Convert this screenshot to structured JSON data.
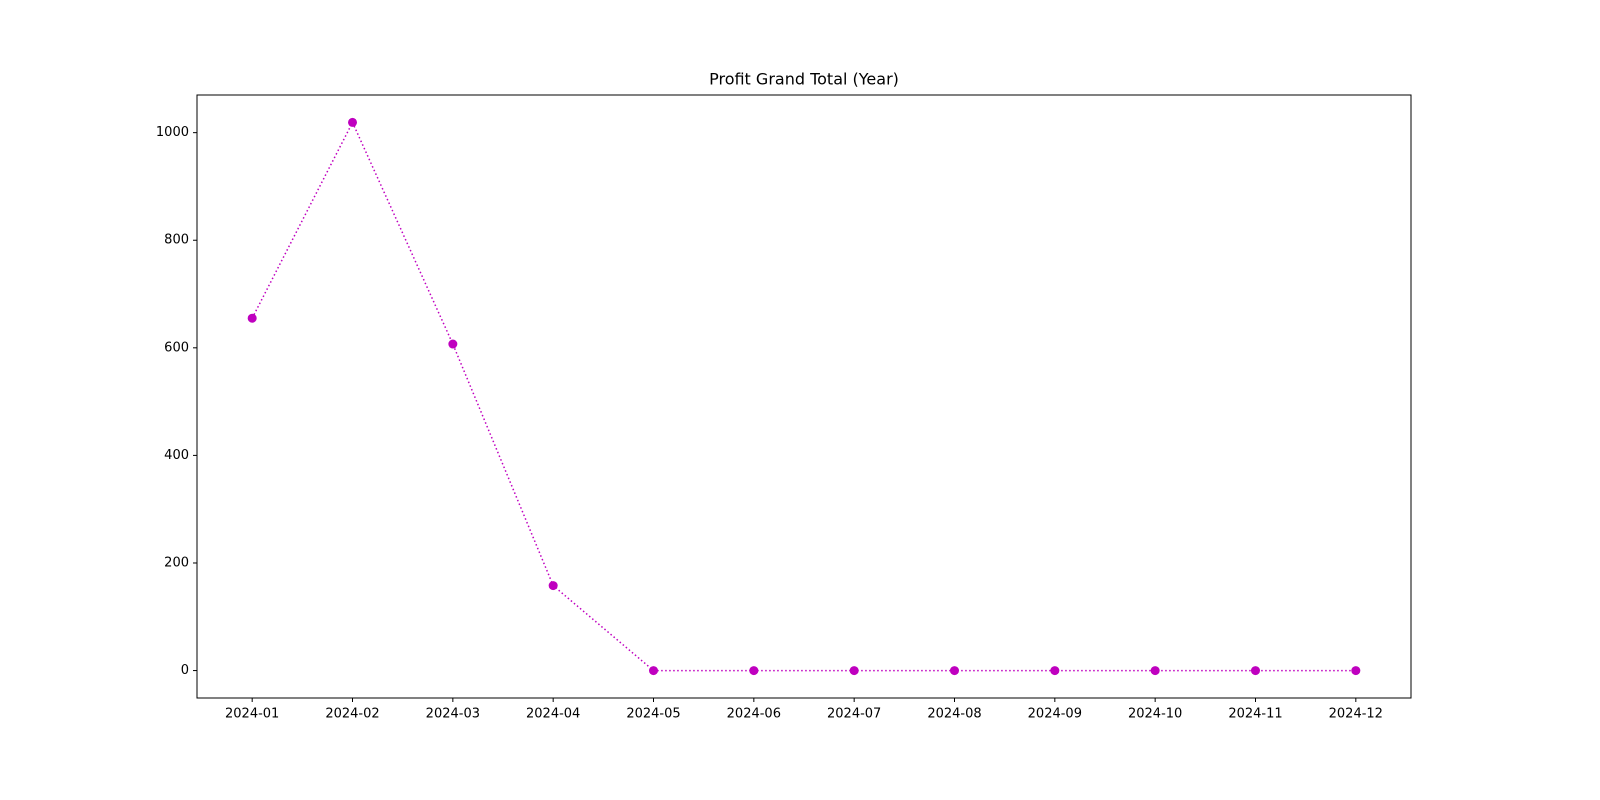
{
  "chart_data": {
    "type": "line",
    "title": "Profit Grand Total (Year)",
    "x": [
      "2024-01",
      "2024-02",
      "2024-03",
      "2024-04",
      "2024-05",
      "2024-06",
      "2024-07",
      "2024-08",
      "2024-09",
      "2024-10",
      "2024-11",
      "2024-12"
    ],
    "values": [
      655,
      1019,
      607,
      158,
      0,
      0,
      0,
      0,
      0,
      0,
      0,
      0
    ],
    "color": "#bf00bf",
    "line_style": "dotted",
    "marker": "circle",
    "ylim": [
      -51,
      1070
    ],
    "yticks": [
      0,
      200,
      400,
      600,
      800,
      1000
    ],
    "grid": false
  }
}
